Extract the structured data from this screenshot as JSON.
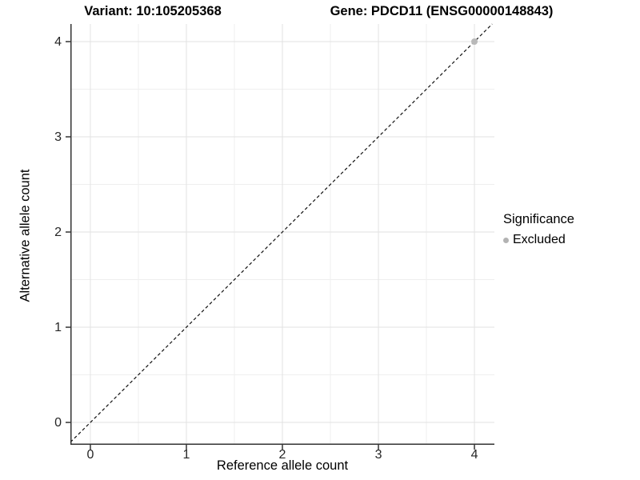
{
  "titles": {
    "variant": "Variant: 10:105205368",
    "gene": "Gene: PDCD11 (ENSG00000148843)"
  },
  "chart_data": {
    "type": "scatter",
    "xlabel": "Reference allele count",
    "ylabel": "Alternative allele count",
    "xticks": [
      0,
      1,
      2,
      3,
      4
    ],
    "yticks": [
      0,
      1,
      2,
      3,
      4
    ],
    "xlim": [
      -0.208,
      4.208
    ],
    "ylim": [
      -0.235,
      4.185
    ],
    "grid": {
      "major": true,
      "minor": true,
      "major_color": "#e2e2e2",
      "minor_color": "#efefef"
    },
    "axis_line_color": "#333333",
    "points": [
      {
        "x": 4,
        "y": 4,
        "significance": "Excluded",
        "color": "#b9b9b9",
        "radius": 4
      }
    ],
    "identity_line": {
      "style": "dashed",
      "slope": 1,
      "intercept": 0,
      "color": "#111111"
    },
    "legend": {
      "title": "Significance",
      "position": "right",
      "entries": [
        {
          "label": "Excluded",
          "color": "#b3b3b3"
        }
      ]
    }
  }
}
